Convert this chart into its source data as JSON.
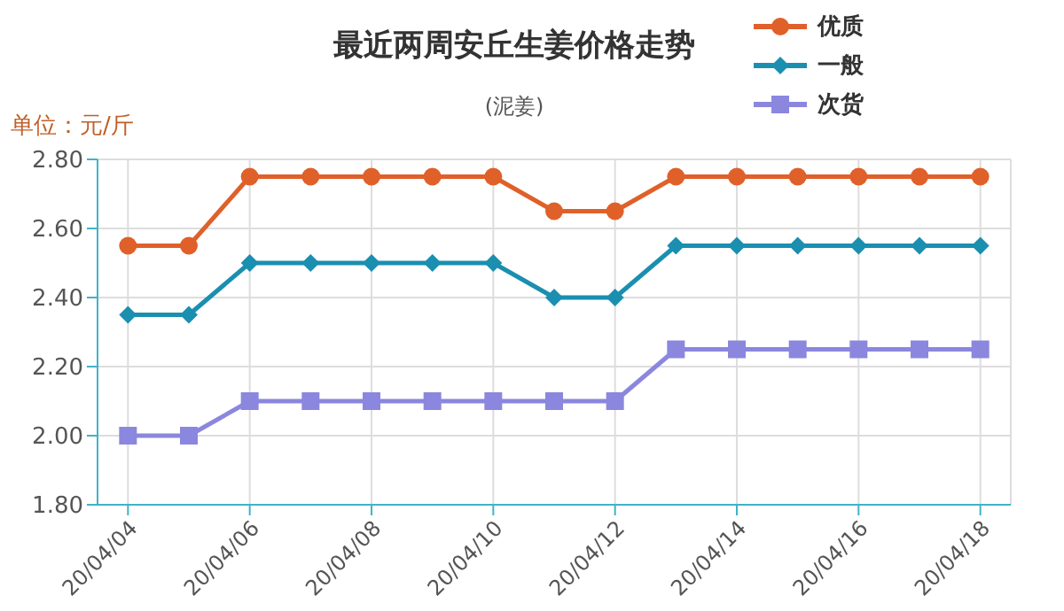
{
  "chart_data": {
    "type": "line",
    "title": "最近两周安丘生姜价格走势",
    "subtitle": "(泥姜)",
    "ylabel": "单位：元/斤",
    "categories": [
      "20/04/04",
      null,
      "20/04/06",
      null,
      "20/04/08",
      null,
      "20/04/10",
      null,
      "20/04/12",
      null,
      "20/04/14",
      null,
      "20/04/16",
      null,
      "20/04/18"
    ],
    "series": [
      {
        "name": "优质",
        "color": "#e0602a",
        "marker": "circle",
        "values": [
          2.55,
          2.55,
          2.75,
          2.75,
          2.75,
          2.75,
          2.75,
          2.65,
          2.65,
          2.75,
          2.75,
          2.75,
          2.75,
          2.75,
          2.75
        ]
      },
      {
        "name": "一般",
        "color": "#1a8fb0",
        "marker": "diamond",
        "values": [
          2.35,
          2.35,
          2.5,
          2.5,
          2.5,
          2.5,
          2.5,
          2.4,
          2.4,
          2.55,
          2.55,
          2.55,
          2.55,
          2.55,
          2.55
        ]
      },
      {
        "name": "次货",
        "color": "#8b87de",
        "marker": "square",
        "values": [
          2.0,
          2.0,
          2.1,
          2.1,
          2.1,
          2.1,
          2.1,
          2.1,
          2.1,
          2.25,
          2.25,
          2.25,
          2.25,
          2.25,
          2.25
        ]
      }
    ],
    "ylim": [
      1.8,
      2.8
    ],
    "yticks": [
      {
        "value": 1.8,
        "label": "1.80"
      },
      {
        "value": 2.0,
        "label": "2.00"
      },
      {
        "value": 2.2,
        "label": "2.20"
      },
      {
        "value": 2.4,
        "label": "2.40"
      },
      {
        "value": 2.6,
        "label": "2.60"
      },
      {
        "value": 2.8,
        "label": "2.80"
      }
    ],
    "grid": true,
    "legend": "top right"
  }
}
